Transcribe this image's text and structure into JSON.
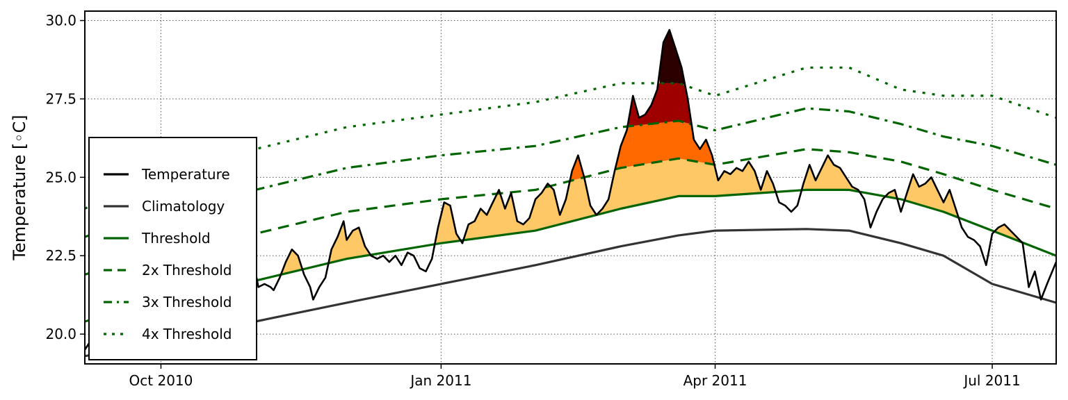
{
  "chart_data": {
    "type": "line",
    "title": "",
    "xlabel": "",
    "ylabel": "Temperature [◦C]",
    "ylim": [
      19.05,
      30.3
    ],
    "xlim": [
      "2010-09-06",
      "2011-07-22"
    ],
    "grid": true,
    "legend_position": "left",
    "x_ticks": [
      {
        "date": "2010-10-01",
        "label": "Oct 2010"
      },
      {
        "date": "2011-01-01",
        "label": "Jan 2011"
      },
      {
        "date": "2011-04-01",
        "label": "Apr 2011"
      },
      {
        "date": "2011-07-01",
        "label": "Jul 2011"
      }
    ],
    "y_ticks": [
      {
        "value": 20.0,
        "label": "20.0"
      },
      {
        "value": 22.5,
        "label": "22.5"
      },
      {
        "value": 25.0,
        "label": "25.0"
      },
      {
        "value": 27.5,
        "label": "27.5"
      },
      {
        "value": 30.0,
        "label": "30.0"
      }
    ],
    "series": [
      {
        "name": "Temperature",
        "color": "#000000",
        "dash": "solid",
        "points": [
          [
            "2010-09-06",
            19.5
          ],
          [
            "2010-09-08",
            19.8
          ],
          [
            "2010-09-12",
            20.3
          ],
          [
            "2010-09-16",
            20.9
          ],
          [
            "2010-09-20",
            21.2
          ],
          [
            "2010-09-24",
            21.3
          ],
          [
            "2010-09-28",
            21.5
          ],
          [
            "2010-10-02",
            21.3
          ],
          [
            "2010-10-06",
            21.6
          ],
          [
            "2010-10-10",
            21.9
          ],
          [
            "2010-10-14",
            22.1
          ],
          [
            "2010-10-18",
            21.8
          ],
          [
            "2010-10-22",
            22.0
          ],
          [
            "2010-10-26",
            22.2
          ],
          [
            "2010-10-30",
            22.1
          ],
          [
            "2010-11-01",
            22.0
          ],
          [
            "2010-11-02",
            21.5
          ],
          [
            "2010-11-04",
            21.6
          ],
          [
            "2010-11-06",
            21.5
          ],
          [
            "2010-11-07",
            21.4
          ],
          [
            "2010-11-09",
            21.8
          ],
          [
            "2010-11-11",
            22.3
          ],
          [
            "2010-11-13",
            22.7
          ],
          [
            "2010-11-15",
            22.5
          ],
          [
            "2010-11-17",
            21.9
          ],
          [
            "2010-11-19",
            21.5
          ],
          [
            "2010-11-20",
            21.1
          ],
          [
            "2010-11-22",
            21.5
          ],
          [
            "2010-11-24",
            21.8
          ],
          [
            "2010-11-26",
            22.7
          ],
          [
            "2010-11-28",
            23.1
          ],
          [
            "2010-11-30",
            23.6
          ],
          [
            "2010-12-01",
            23.0
          ],
          [
            "2010-12-03",
            23.3
          ],
          [
            "2010-12-05",
            23.4
          ],
          [
            "2010-12-07",
            22.8
          ],
          [
            "2010-12-09",
            22.5
          ],
          [
            "2010-12-11",
            22.4
          ],
          [
            "2010-12-13",
            22.5
          ],
          [
            "2010-12-15",
            22.3
          ],
          [
            "2010-12-17",
            22.5
          ],
          [
            "2010-12-19",
            22.2
          ],
          [
            "2010-12-21",
            22.6
          ],
          [
            "2010-12-23",
            22.5
          ],
          [
            "2010-12-25",
            22.1
          ],
          [
            "2010-12-27",
            22.0
          ],
          [
            "2010-12-29",
            22.4
          ],
          [
            "2010-12-31",
            23.4
          ],
          [
            "2011-01-02",
            24.2
          ],
          [
            "2011-01-04",
            24.1
          ],
          [
            "2011-01-06",
            23.2
          ],
          [
            "2011-01-08",
            22.9
          ],
          [
            "2011-01-10",
            23.5
          ],
          [
            "2011-01-12",
            23.6
          ],
          [
            "2011-01-14",
            24.0
          ],
          [
            "2011-01-16",
            23.8
          ],
          [
            "2011-01-18",
            24.2
          ],
          [
            "2011-01-20",
            24.6
          ],
          [
            "2011-01-22",
            24.0
          ],
          [
            "2011-01-24",
            24.5
          ],
          [
            "2011-01-26",
            23.6
          ],
          [
            "2011-01-28",
            23.5
          ],
          [
            "2011-01-30",
            23.7
          ],
          [
            "2011-02-01",
            24.3
          ],
          [
            "2011-02-03",
            24.5
          ],
          [
            "2011-02-05",
            24.8
          ],
          [
            "2011-02-07",
            24.6
          ],
          [
            "2011-02-09",
            23.8
          ],
          [
            "2011-02-11",
            24.3
          ],
          [
            "2011-02-13",
            25.2
          ],
          [
            "2011-02-15",
            25.7
          ],
          [
            "2011-02-17",
            25.0
          ],
          [
            "2011-02-19",
            24.1
          ],
          [
            "2011-02-21",
            23.8
          ],
          [
            "2011-02-23",
            24.0
          ],
          [
            "2011-02-25",
            24.3
          ],
          [
            "2011-02-27",
            25.2
          ],
          [
            "2011-03-01",
            26.0
          ],
          [
            "2011-03-03",
            26.5
          ],
          [
            "2011-03-05",
            27.6
          ],
          [
            "2011-03-07",
            26.9
          ],
          [
            "2011-03-09",
            27.0
          ],
          [
            "2011-03-11",
            27.3
          ],
          [
            "2011-03-13",
            27.8
          ],
          [
            "2011-03-15",
            29.3
          ],
          [
            "2011-03-17",
            29.7
          ],
          [
            "2011-03-19",
            29.1
          ],
          [
            "2011-03-21",
            28.5
          ],
          [
            "2011-03-23",
            27.5
          ],
          [
            "2011-03-25",
            26.2
          ],
          [
            "2011-03-27",
            25.9
          ],
          [
            "2011-03-29",
            26.2
          ],
          [
            "2011-03-31",
            25.7
          ],
          [
            "2011-04-02",
            24.9
          ],
          [
            "2011-04-04",
            25.2
          ],
          [
            "2011-04-06",
            25.1
          ],
          [
            "2011-04-08",
            25.3
          ],
          [
            "2011-04-10",
            25.2
          ],
          [
            "2011-04-12",
            25.5
          ],
          [
            "2011-04-14",
            25.2
          ],
          [
            "2011-04-16",
            24.6
          ],
          [
            "2011-04-18",
            25.2
          ],
          [
            "2011-04-20",
            24.8
          ],
          [
            "2011-04-22",
            24.2
          ],
          [
            "2011-04-24",
            24.1
          ],
          [
            "2011-04-26",
            23.9
          ],
          [
            "2011-04-28",
            24.1
          ],
          [
            "2011-04-30",
            24.8
          ],
          [
            "2011-05-02",
            25.4
          ],
          [
            "2011-05-04",
            24.9
          ],
          [
            "2011-05-06",
            25.3
          ],
          [
            "2011-05-08",
            25.7
          ],
          [
            "2011-05-10",
            25.4
          ],
          [
            "2011-05-12",
            25.3
          ],
          [
            "2011-05-14",
            25.0
          ],
          [
            "2011-05-16",
            24.7
          ],
          [
            "2011-05-18",
            24.6
          ],
          [
            "2011-05-20",
            24.3
          ],
          [
            "2011-05-22",
            23.4
          ],
          [
            "2011-05-24",
            23.9
          ],
          [
            "2011-05-26",
            24.3
          ],
          [
            "2011-05-28",
            24.5
          ],
          [
            "2011-05-30",
            24.6
          ],
          [
            "2011-06-01",
            23.9
          ],
          [
            "2011-06-03",
            24.5
          ],
          [
            "2011-06-05",
            25.1
          ],
          [
            "2011-06-07",
            24.7
          ],
          [
            "2011-06-09",
            24.8
          ],
          [
            "2011-06-11",
            25.0
          ],
          [
            "2011-06-13",
            24.6
          ],
          [
            "2011-06-15",
            24.2
          ],
          [
            "2011-06-17",
            24.6
          ],
          [
            "2011-06-19",
            24.0
          ],
          [
            "2011-06-21",
            23.4
          ],
          [
            "2011-06-23",
            23.1
          ],
          [
            "2011-06-25",
            23.0
          ],
          [
            "2011-06-27",
            22.8
          ],
          [
            "2011-06-29",
            22.2
          ],
          [
            "2011-07-01",
            23.2
          ],
          [
            "2011-07-03",
            23.4
          ],
          [
            "2011-07-05",
            23.5
          ],
          [
            "2011-07-07",
            23.3
          ],
          [
            "2011-07-09",
            23.1
          ],
          [
            "2011-07-11",
            22.9
          ],
          [
            "2011-07-13",
            21.5
          ],
          [
            "2011-07-15",
            22.0
          ],
          [
            "2011-07-17",
            21.1
          ],
          [
            "2011-07-19",
            21.6
          ],
          [
            "2011-07-22",
            22.3
          ]
        ]
      },
      {
        "name": "Climatology",
        "color": "#333333",
        "dash": "solid",
        "points": [
          [
            "2010-09-06",
            19.3
          ],
          [
            "2010-10-01",
            19.7
          ],
          [
            "2010-11-01",
            20.4
          ],
          [
            "2010-12-01",
            21.0
          ],
          [
            "2011-01-01",
            21.6
          ],
          [
            "2011-02-01",
            22.2
          ],
          [
            "2011-03-01",
            22.8
          ],
          [
            "2011-03-20",
            23.15
          ],
          [
            "2011-04-01",
            23.3
          ],
          [
            "2011-05-01",
            23.35
          ],
          [
            "2011-05-15",
            23.3
          ],
          [
            "2011-06-01",
            22.9
          ],
          [
            "2011-06-15",
            22.5
          ],
          [
            "2011-07-01",
            21.6
          ],
          [
            "2011-07-22",
            21.0
          ]
        ]
      },
      {
        "name": "Threshold",
        "color": "#006400",
        "dash": "solid",
        "points": [
          [
            "2010-09-06",
            20.4
          ],
          [
            "2010-10-01",
            21.1
          ],
          [
            "2010-11-01",
            21.7
          ],
          [
            "2010-12-01",
            22.4
          ],
          [
            "2011-01-01",
            22.9
          ],
          [
            "2011-02-01",
            23.3
          ],
          [
            "2011-03-01",
            24.0
          ],
          [
            "2011-03-20",
            24.4
          ],
          [
            "2011-04-01",
            24.4
          ],
          [
            "2011-05-01",
            24.6
          ],
          [
            "2011-05-15",
            24.6
          ],
          [
            "2011-06-01",
            24.3
          ],
          [
            "2011-06-15",
            23.9
          ],
          [
            "2011-07-01",
            23.3
          ],
          [
            "2011-07-22",
            22.5
          ]
        ]
      },
      {
        "name": "2x Threshold",
        "color": "#006400",
        "dash": "dash",
        "points": [
          [
            "2010-09-06",
            21.9
          ],
          [
            "2010-10-01",
            22.6
          ],
          [
            "2010-11-01",
            23.2
          ],
          [
            "2010-12-01",
            23.9
          ],
          [
            "2011-01-01",
            24.3
          ],
          [
            "2011-02-01",
            24.6
          ],
          [
            "2011-03-01",
            25.3
          ],
          [
            "2011-03-20",
            25.6
          ],
          [
            "2011-04-01",
            25.4
          ],
          [
            "2011-05-01",
            25.9
          ],
          [
            "2011-05-15",
            25.8
          ],
          [
            "2011-06-01",
            25.5
          ],
          [
            "2011-06-15",
            25.1
          ],
          [
            "2011-07-01",
            24.6
          ],
          [
            "2011-07-22",
            24.0
          ]
        ]
      },
      {
        "name": "3x Threshold",
        "color": "#006400",
        "dash": "dashdot",
        "points": [
          [
            "2010-09-06",
            23.1
          ],
          [
            "2010-10-01",
            23.9
          ],
          [
            "2010-11-01",
            24.6
          ],
          [
            "2010-12-01",
            25.3
          ],
          [
            "2011-01-01",
            25.7
          ],
          [
            "2011-02-01",
            26.0
          ],
          [
            "2011-03-01",
            26.6
          ],
          [
            "2011-03-20",
            26.8
          ],
          [
            "2011-04-01",
            26.5
          ],
          [
            "2011-05-01",
            27.2
          ],
          [
            "2011-05-15",
            27.1
          ],
          [
            "2011-06-01",
            26.7
          ],
          [
            "2011-06-15",
            26.3
          ],
          [
            "2011-07-01",
            26.0
          ],
          [
            "2011-07-22",
            25.4
          ]
        ]
      },
      {
        "name": "4x Threshold",
        "color": "#006400",
        "dash": "dot",
        "points": [
          [
            "2010-09-06",
            24.0
          ],
          [
            "2010-10-01",
            25.2
          ],
          [
            "2010-11-01",
            25.9
          ],
          [
            "2010-12-01",
            26.6
          ],
          [
            "2011-01-01",
            27.0
          ],
          [
            "2011-02-01",
            27.4
          ],
          [
            "2011-03-01",
            28.0
          ],
          [
            "2011-03-20",
            28.0
          ],
          [
            "2011-04-01",
            27.6
          ],
          [
            "2011-05-01",
            28.5
          ],
          [
            "2011-05-15",
            28.5
          ],
          [
            "2011-06-01",
            27.8
          ],
          [
            "2011-06-15",
            27.6
          ],
          [
            "2011-07-01",
            27.6
          ],
          [
            "2011-07-22",
            26.9
          ]
        ]
      }
    ],
    "fill_colors": [
      "#FFC866",
      "#FF6900",
      "#9E0000",
      "#2D0000"
    ]
  }
}
